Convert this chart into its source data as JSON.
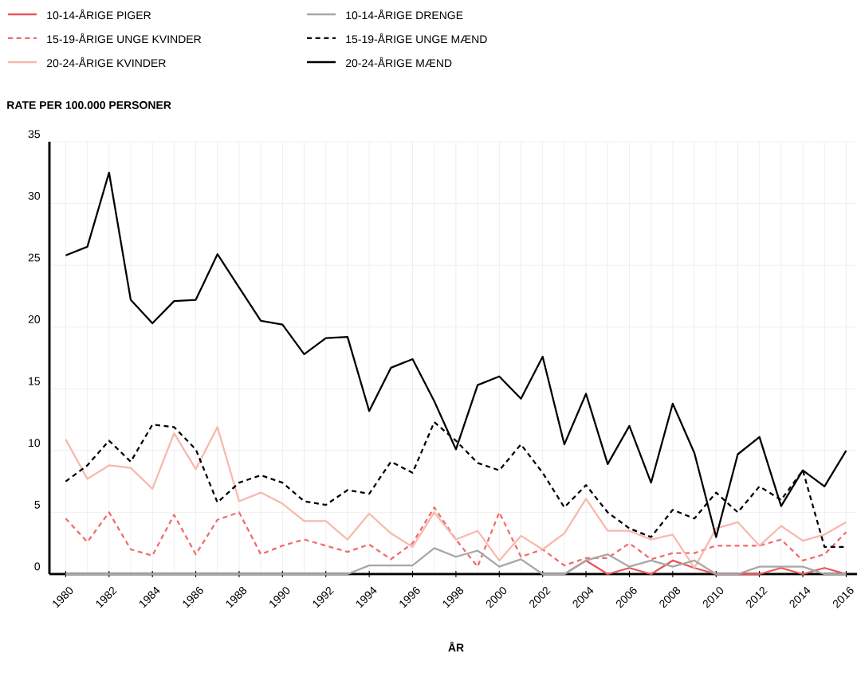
{
  "chart_data": {
    "type": "line",
    "xlabel": "ÅR",
    "ylabel": "RATE PER 100.000 PERSONER",
    "x": [
      1980,
      1981,
      1982,
      1983,
      1984,
      1985,
      1986,
      1987,
      1988,
      1989,
      1990,
      1991,
      1992,
      1993,
      1994,
      1995,
      1996,
      1997,
      1998,
      1999,
      2000,
      2001,
      2002,
      2003,
      2004,
      2005,
      2006,
      2007,
      2008,
      2009,
      2010,
      2011,
      2012,
      2013,
      2014,
      2015,
      2016
    ],
    "series": [
      {
        "name": "10-14-ÅRIGE PIGER",
        "color": "#e8565a",
        "line_style": "solid",
        "values": [
          null,
          null,
          null,
          null,
          null,
          null,
          null,
          null,
          null,
          null,
          null,
          null,
          null,
          null,
          null,
          null,
          null,
          null,
          null,
          null,
          null,
          null,
          null,
          0,
          1.1,
          0,
          0.5,
          0,
          1.1,
          0.5,
          0,
          0,
          0,
          0.5,
          0,
          0.5,
          0
        ]
      },
      {
        "name": "15-19-ÅRIGE UNGE KVINDER",
        "color": "#f26b6b",
        "line_style": "dashed",
        "values": [
          4.5,
          2.6,
          5.0,
          2.0,
          1.5,
          4.8,
          1.6,
          4.4,
          5.0,
          1.6,
          2.3,
          2.8,
          2.3,
          1.8,
          2.4,
          1.2,
          2.5,
          5.4,
          2.8,
          0.6,
          5.0,
          1.4,
          2.0,
          0.7,
          1.3,
          1.3,
          2.5,
          1.2,
          1.7,
          1.7,
          2.3,
          2.3,
          2.3,
          2.8,
          1.1,
          1.6,
          3.4
        ]
      },
      {
        "name": "20-24-ÅRIGE KVINDER",
        "color": "#f7b9ad",
        "line_style": "solid",
        "values": [
          10.9,
          7.7,
          8.8,
          8.6,
          6.9,
          11.4,
          8.5,
          11.9,
          5.9,
          6.6,
          5.7,
          4.3,
          4.3,
          2.8,
          4.9,
          3.3,
          2.2,
          5.0,
          2.8,
          3.5,
          1.1,
          3.1,
          2.0,
          3.3,
          6.1,
          3.5,
          3.5,
          2.8,
          3.2,
          0.5,
          3.7,
          4.2,
          2.3,
          3.9,
          2.7,
          3.2,
          4.2
        ]
      },
      {
        "name": "10-14-ÅRIGE DRENGE",
        "color": "#a7a7a7",
        "line_style": "solid",
        "values": [
          0,
          0,
          0,
          0,
          0,
          0,
          0,
          0,
          0,
          0,
          0,
          0,
          0,
          0,
          0.7,
          0.7,
          0.7,
          2.1,
          1.4,
          1.9,
          0.6,
          1.2,
          0,
          0,
          1.1,
          1.6,
          0.6,
          1.1,
          0.6,
          1.1,
          0,
          0,
          0.6,
          0.6,
          0.6,
          0,
          0
        ]
      },
      {
        "name": "15-19-ÅRIGE UNGE MÆND",
        "color": "#000000",
        "line_style": "dashed",
        "values": [
          7.5,
          8.8,
          10.8,
          9.1,
          12.1,
          11.9,
          10.1,
          5.8,
          7.4,
          8.0,
          7.4,
          5.9,
          5.6,
          6.8,
          6.5,
          9.1,
          8.2,
          12.3,
          10.8,
          9.0,
          8.4,
          10.5,
          8.2,
          5.4,
          7.2,
          5.0,
          3.7,
          3.0,
          5.2,
          4.5,
          6.6,
          5.0,
          7.1,
          6.0,
          8.4,
          2.2,
          2.2
        ]
      },
      {
        "name": "20-24-ÅRIGE MÆND",
        "color": "#000000",
        "line_style": "solid",
        "values": [
          25.8,
          26.5,
          32.5,
          22.2,
          20.3,
          22.1,
          22.2,
          25.9,
          23.2,
          20.5,
          20.2,
          17.8,
          19.1,
          19.2,
          13.2,
          16.7,
          17.4,
          14.0,
          10.1,
          15.3,
          16.0,
          14.2,
          17.6,
          10.5,
          14.6,
          8.9,
          12.0,
          7.4,
          13.8,
          9.8,
          3.0,
          9.7,
          11.1,
          5.5,
          8.4,
          7.1,
          10.0
        ]
      }
    ],
    "xlim": [
      1979.25,
      2016.5
    ],
    "ylim": [
      0,
      35
    ],
    "xticks": [
      1980,
      {
        "value": 1981,
        "label": null
      },
      1982,
      {
        "value": 1983,
        "label": null
      },
      1984,
      {
        "value": 1985,
        "label": null
      },
      1986,
      {
        "value": 1987,
        "label": null
      },
      1988,
      {
        "value": 1989,
        "label": null
      },
      1990,
      {
        "value": 1991,
        "label": null
      },
      1992,
      {
        "value": 1993,
        "label": null
      },
      1994,
      {
        "value": 1995,
        "label": null
      },
      1996,
      {
        "value": 1997,
        "label": null
      },
      1998,
      {
        "value": 1999,
        "label": null
      },
      2000,
      {
        "value": 2001,
        "label": null
      },
      2002,
      {
        "value": 2003,
        "label": null
      },
      2004,
      {
        "value": 2005,
        "label": null
      },
      2006,
      {
        "value": 2007,
        "label": null
      },
      2008,
      {
        "value": 2009,
        "label": null
      },
      2010,
      {
        "value": 2011,
        "label": null
      },
      2012,
      {
        "value": 2013,
        "label": null
      },
      2014,
      {
        "value": 2015,
        "label": null
      },
      2016
    ],
    "yticks": [
      0,
      5,
      10,
      15,
      20,
      25,
      30,
      35
    ],
    "grid": true,
    "legend": "top",
    "marker": "none"
  }
}
